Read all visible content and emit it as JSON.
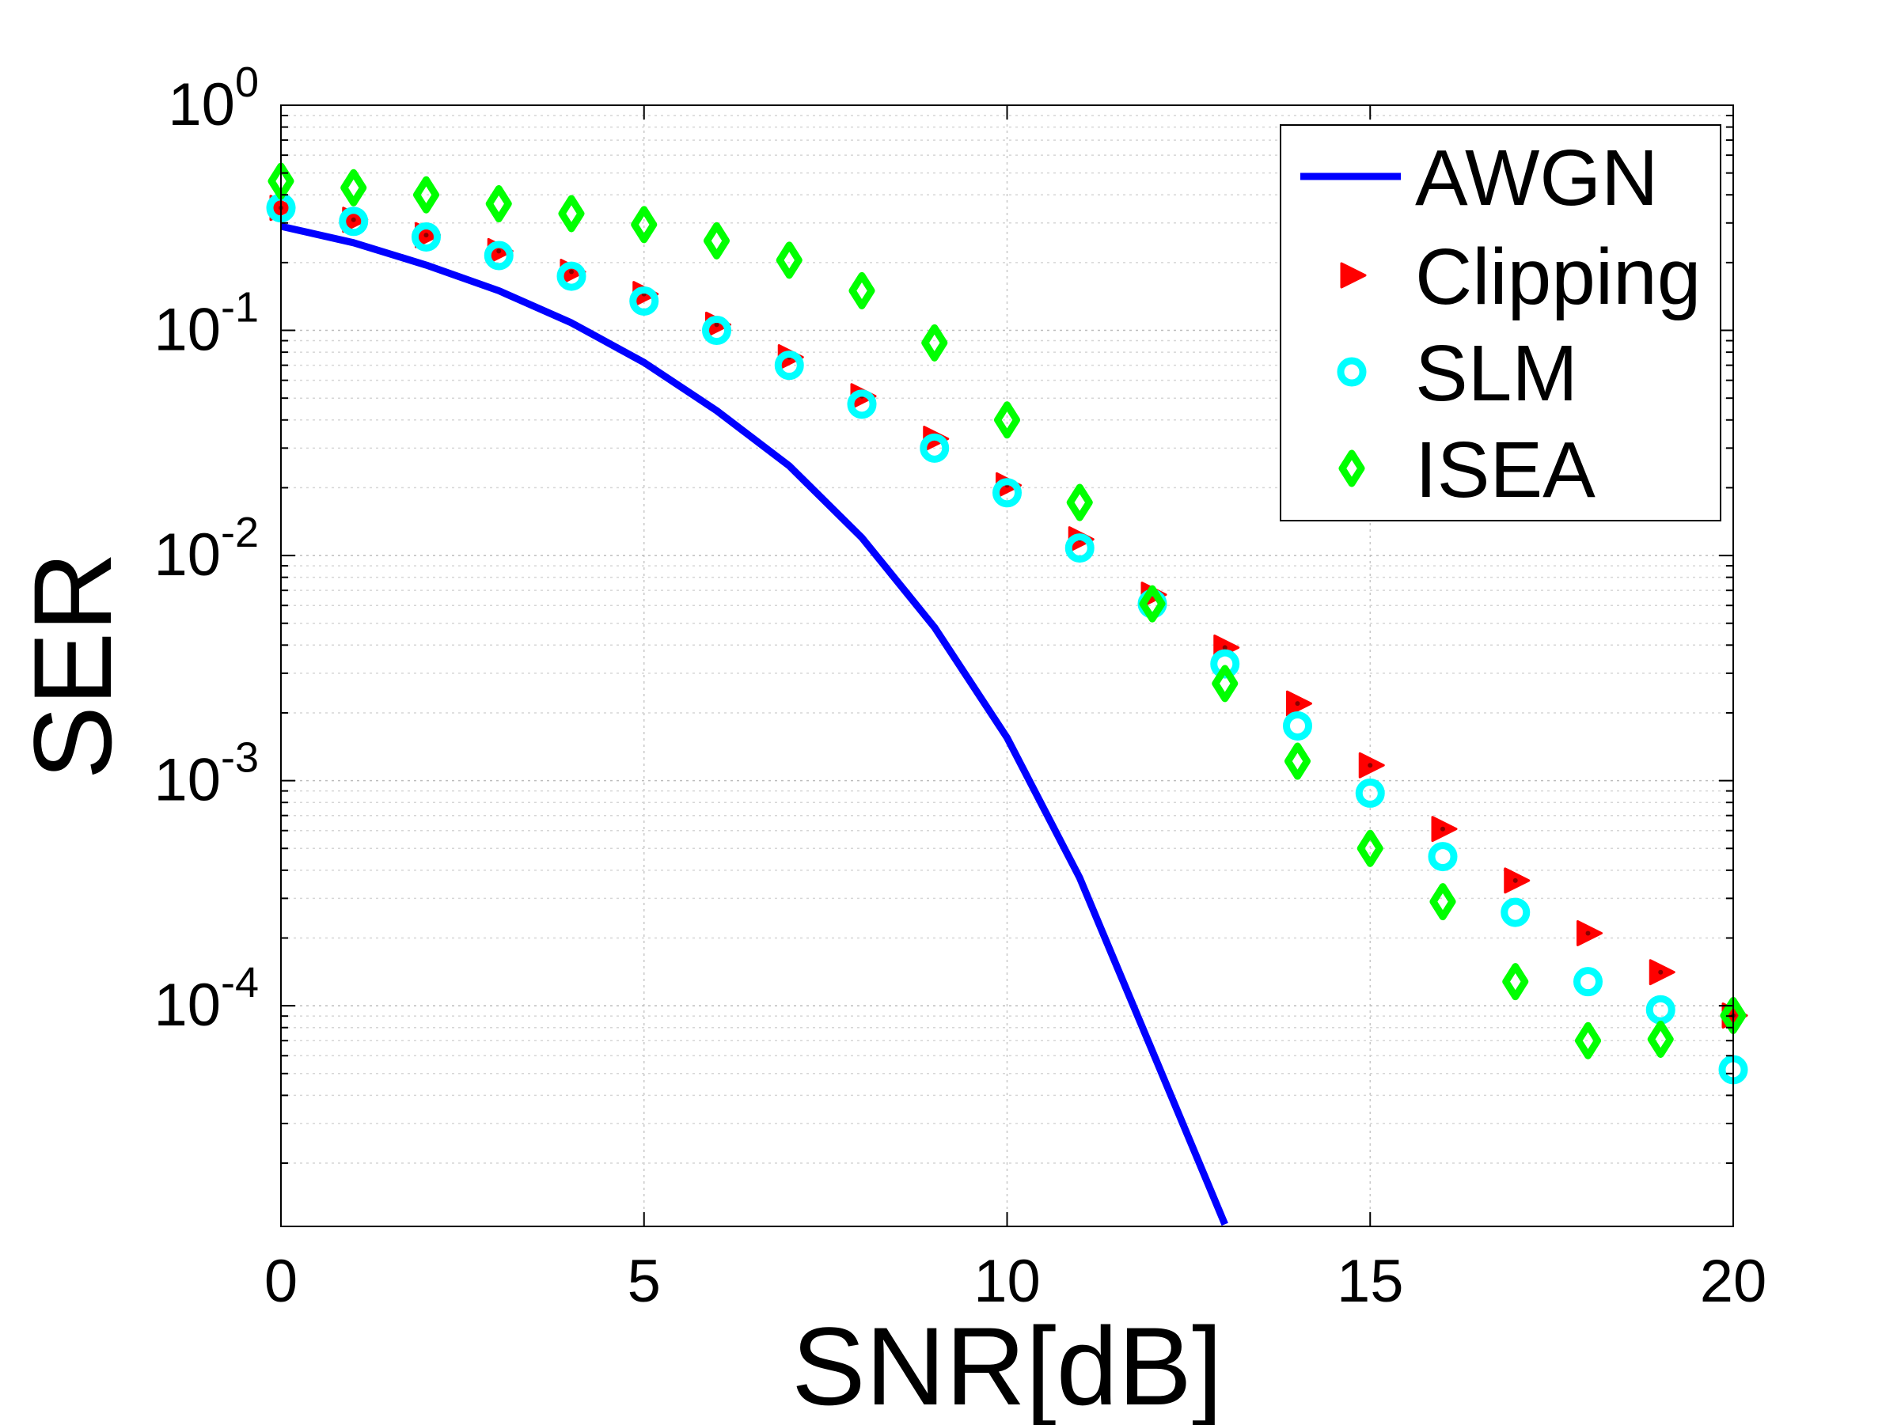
{
  "chart_data": {
    "type": "line",
    "title": "",
    "xlabel": "SNR[dB]",
    "ylabel": "SER",
    "xlim": [
      0,
      20
    ],
    "ylim_log10": [
      -4.98,
      0
    ],
    "yscale": "log",
    "grid": true,
    "legend_position": "top-right",
    "x_ticks": [
      0,
      5,
      10,
      15,
      20
    ],
    "y_ticks": [
      {
        "mantissa": "10",
        "exponent": "0",
        "value": 1
      },
      {
        "mantissa": "10",
        "exponent": "-1",
        "value": 0.1
      },
      {
        "mantissa": "10",
        "exponent": "-2",
        "value": 0.01
      },
      {
        "mantissa": "10",
        "exponent": "-3",
        "value": 0.001
      },
      {
        "mantissa": "10",
        "exponent": "-4",
        "value": 0.0001
      }
    ],
    "series": [
      {
        "name": "AWGN",
        "style": "line",
        "color": "#0000ff",
        "x": [
          0,
          1,
          2,
          3,
          4,
          5,
          6,
          7,
          8,
          9,
          10,
          11,
          12,
          13
        ],
        "values": [
          0.29,
          0.245,
          0.195,
          0.15,
          0.108,
          0.072,
          0.044,
          0.025,
          0.012,
          0.0048,
          0.00155,
          0.00037,
          6.3e-05,
          1.07e-05
        ]
      },
      {
        "name": "Clipping",
        "style": "marker-triangle-right",
        "color": "#ff0000",
        "x": [
          0,
          1,
          2,
          3,
          4,
          5,
          6,
          7,
          8,
          9,
          10,
          11,
          12,
          13,
          14,
          15,
          16,
          17,
          18,
          19,
          20
        ],
        "values": [
          0.35,
          0.31,
          0.265,
          0.225,
          0.182,
          0.145,
          0.106,
          0.076,
          0.051,
          0.033,
          0.0205,
          0.0118,
          0.0067,
          0.0039,
          0.0022,
          0.00117,
          0.00061,
          0.00036,
          0.00021,
          0.000141,
          9.05e-05
        ]
      },
      {
        "name": "SLM",
        "style": "marker-circle",
        "color": "#00ffff",
        "x": [
          0,
          1,
          2,
          3,
          4,
          5,
          6,
          7,
          8,
          9,
          10,
          11,
          12,
          13,
          14,
          15,
          16,
          17,
          18,
          19,
          20
        ],
        "values": [
          0.35,
          0.305,
          0.26,
          0.215,
          0.174,
          0.135,
          0.1,
          0.07,
          0.047,
          0.03,
          0.019,
          0.0108,
          0.0061,
          0.0033,
          0.00175,
          0.00088,
          0.00046,
          0.00026,
          0.000128,
          9.6e-05,
          5.2e-05
        ]
      },
      {
        "name": "ISEA",
        "style": "marker-diamond",
        "color": "#00ff00",
        "x": [
          0,
          1,
          2,
          3,
          4,
          5,
          6,
          7,
          8,
          9,
          10,
          11,
          12,
          13,
          14,
          15,
          16,
          17,
          18,
          19,
          20
        ],
        "values": [
          0.46,
          0.43,
          0.4,
          0.365,
          0.33,
          0.295,
          0.25,
          0.205,
          0.15,
          0.088,
          0.04,
          0.0172,
          0.0061,
          0.0027,
          0.00122,
          0.0005,
          0.00029,
          0.000128,
          7e-05,
          7.1e-05,
          9.05e-05
        ]
      }
    ],
    "legend": [
      "AWGN",
      "Clipping",
      "SLM",
      "ISEA"
    ]
  }
}
